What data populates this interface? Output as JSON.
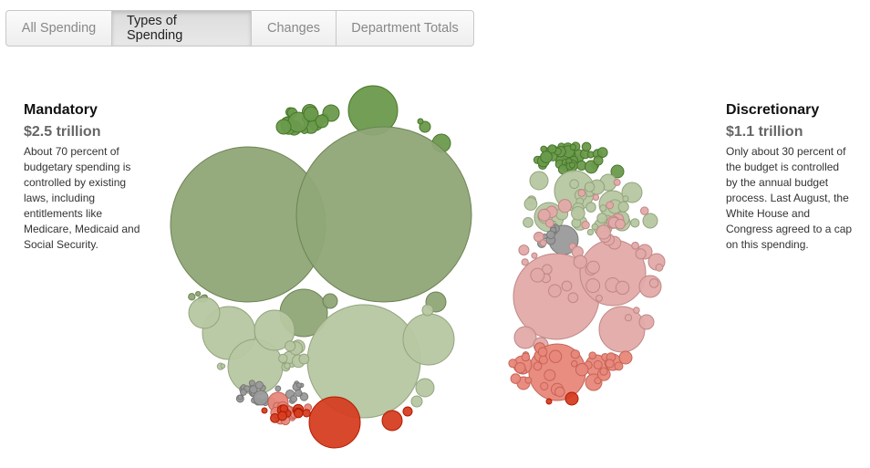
{
  "tabs": [
    {
      "label": "All Spending",
      "active": false
    },
    {
      "label": "Types of Spending",
      "active": true
    },
    {
      "label": "Changes",
      "active": false
    },
    {
      "label": "Department Totals",
      "active": false
    }
  ],
  "mandatory": {
    "title": "Mandatory",
    "amount": "$2.5 trillion",
    "description": "About 70 percent of budgetary spending is controlled by existing laws, including entitlements like Medicare, Medicaid and Social Security."
  },
  "discretionary": {
    "title": "Discretionary",
    "amount": "$1.1 trillion",
    "description": "Only about 30 percent of the budget is controlled by the annual budget process. Last August, the White House and Congress agreed to a cap on this spending."
  },
  "colors": {
    "dark_green": "#6a9a4c",
    "olive_green": "#8fa677",
    "light_green": "#b6c7a1",
    "gray": "#9a9a9a",
    "pink": "#e2aaa8",
    "salmon": "#e8877a",
    "red": "#d53e22"
  }
}
